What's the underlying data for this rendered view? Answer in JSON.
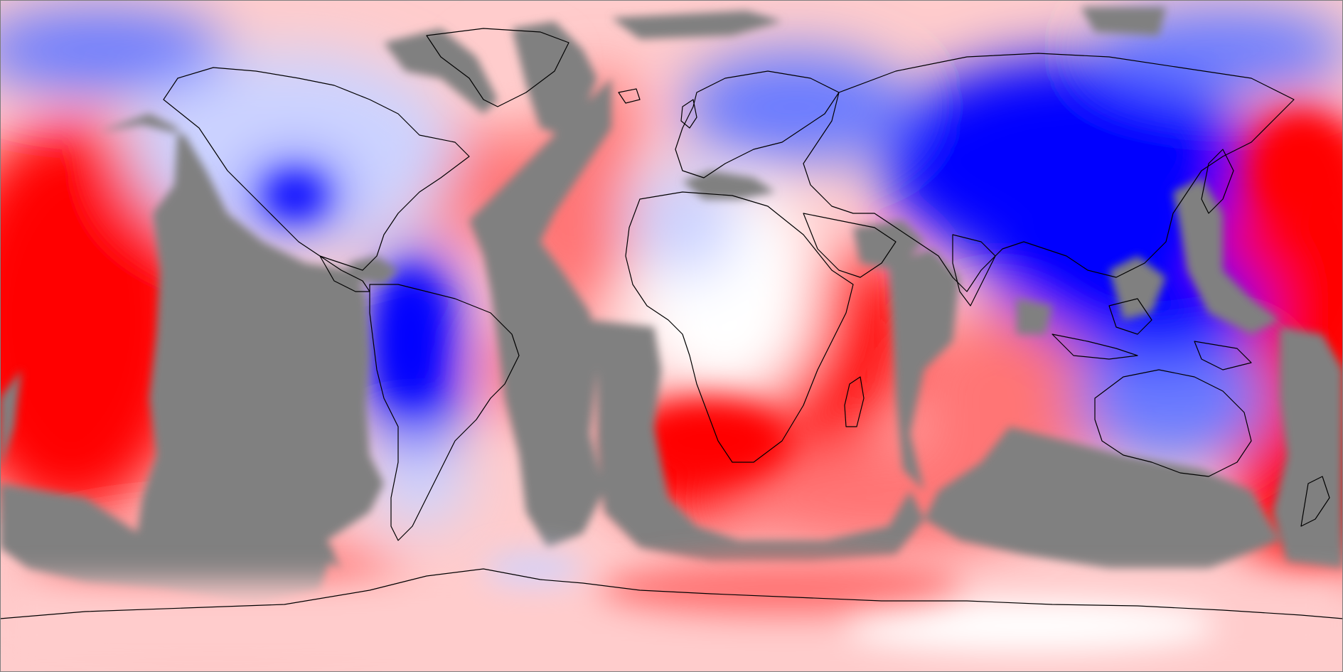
{
  "map": {
    "projection": "equirectangular",
    "extent": "global",
    "colors": {
      "ocean_nodata": "#808080",
      "strong_positive": "#ff0000",
      "positive": "#ff7575",
      "weak_positive": "#ffcccc",
      "neutral": "#ffffff",
      "weak_negative": "#ccd3ff",
      "negative": "#6b7bff",
      "strong_negative": "#0000ff",
      "coastline": "#000000",
      "frame": "#7f7f7f"
    },
    "features": {
      "coastlines": true,
      "colorbar": false,
      "title": false
    }
  }
}
